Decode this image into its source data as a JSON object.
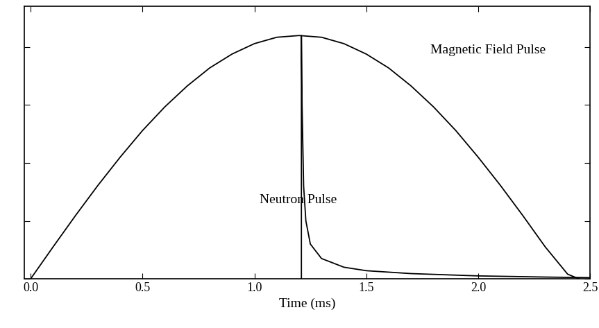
{
  "chart_data": {
    "type": "line",
    "x_label": "Time (ms)",
    "series": [
      {
        "name": "Magnetic Field Pulse",
        "color": "#000000",
        "line_style": "solid",
        "x": [
          0.0,
          0.1,
          0.2,
          0.3,
          0.4,
          0.5,
          0.6,
          0.7,
          0.8,
          0.9,
          1.0,
          1.1,
          1.2,
          1.3,
          1.4,
          1.5,
          1.6,
          1.7,
          1.8,
          1.9,
          2.0,
          2.1,
          2.2,
          2.3,
          2.4,
          2.45
        ],
        "values": [
          0.0,
          0.55,
          1.09,
          1.61,
          2.1,
          2.56,
          2.97,
          3.33,
          3.64,
          3.88,
          4.06,
          4.17,
          4.2,
          4.17,
          4.06,
          3.88,
          3.64,
          3.33,
          2.97,
          2.56,
          2.1,
          1.61,
          1.09,
          0.55,
          0.08,
          0.0
        ]
      },
      {
        "name": "Neutron Pulse",
        "color": "#000000",
        "line_style": "solid",
        "x": [
          1.21,
          1.21,
          1.213,
          1.22,
          1.23,
          1.25,
          1.3,
          1.4,
          1.5,
          1.7,
          2.0,
          2.3,
          2.5
        ],
        "values": [
          0.0,
          4.2,
          3.0,
          1.6,
          1.0,
          0.6,
          0.35,
          0.2,
          0.14,
          0.09,
          0.05,
          0.03,
          0.02
        ]
      }
    ],
    "xlim": [
      -0.03,
      2.5
    ],
    "xticks": [
      {
        "value": 0.0,
        "label": "0.0"
      },
      {
        "value": 0.5,
        "label": "0.5"
      },
      {
        "value": 1.0,
        "label": "1.0"
      },
      {
        "value": 1.5,
        "label": "1.5"
      },
      {
        "value": 2.0,
        "label": "2.0"
      },
      {
        "value": 2.5,
        "label": "2.5"
      }
    ],
    "ylim": [
      0,
      4.7
    ],
    "yticks": [
      0,
      1,
      2,
      3,
      4
    ],
    "tick_labels": "x",
    "grid": false
  }
}
